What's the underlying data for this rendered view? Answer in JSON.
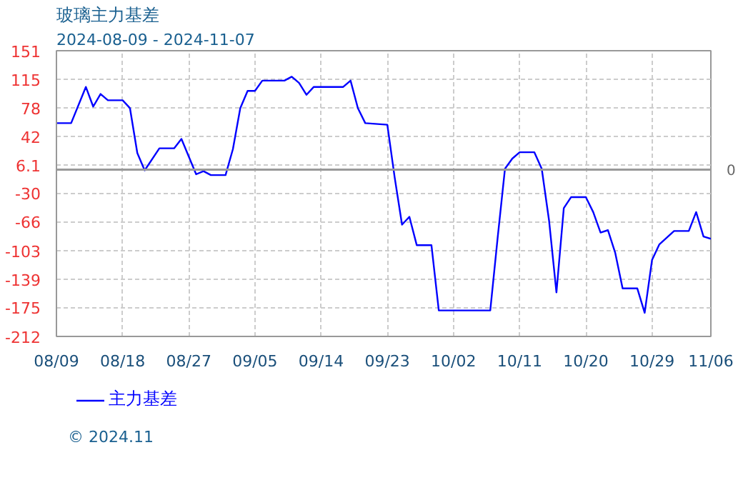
{
  "chart_data": {
    "type": "line",
    "title": "玻璃主力基差",
    "subtitle": "2024-08-09 - 2024-11-07",
    "annotations": [
      "© 2024.11"
    ],
    "x": [
      "2024-08-09",
      "2024-08-11",
      "2024-08-13",
      "2024-08-14",
      "2024-08-15",
      "2024-08-16",
      "2024-08-18",
      "2024-08-19",
      "2024-08-20",
      "2024-08-21",
      "2024-08-23",
      "2024-08-25",
      "2024-08-26",
      "2024-08-28",
      "2024-08-29",
      "2024-08-30",
      "2024-09-01",
      "2024-09-02",
      "2024-09-03",
      "2024-09-04",
      "2024-09-05",
      "2024-09-06",
      "2024-09-09",
      "2024-09-10",
      "2024-09-11",
      "2024-09-12",
      "2024-09-13",
      "2024-09-17",
      "2024-09-18",
      "2024-09-19",
      "2024-09-20",
      "2024-09-23",
      "2024-09-24",
      "2024-09-25",
      "2024-09-26",
      "2024-09-27",
      "2024-09-29",
      "2024-09-30",
      "2024-10-07",
      "2024-10-08",
      "2024-10-09",
      "2024-10-10",
      "2024-10-11",
      "2024-10-13",
      "2024-10-14",
      "2024-10-15",
      "2024-10-16",
      "2024-10-17",
      "2024-10-18",
      "2024-10-20",
      "2024-10-21",
      "2024-10-22",
      "2024-10-23",
      "2024-10-24",
      "2024-10-25",
      "2024-10-27",
      "2024-10-28",
      "2024-10-29",
      "2024-10-30",
      "2024-11-01",
      "2024-11-03",
      "2024-11-04",
      "2024-11-05",
      "2024-11-06"
    ],
    "series": [
      {
        "name": "主力基差",
        "color": "#0000ff",
        "values": [
          59,
          59,
          105,
          80,
          96,
          88,
          88,
          78,
          21,
          -1,
          27,
          27,
          39,
          -6,
          -2,
          -7,
          -7,
          26,
          78,
          100,
          100,
          113,
          113,
          118,
          110,
          95,
          105,
          105,
          113,
          78,
          59,
          57,
          -10,
          -70,
          -60,
          -96,
          -96,
          -179,
          -179,
          -87,
          1,
          14,
          22,
          22,
          1,
          -65,
          -156,
          -49,
          -35,
          -35,
          -54,
          -80,
          -77,
          -106,
          -151,
          -151,
          -182,
          -115,
          -95,
          -78,
          -78,
          -54,
          -85,
          -88
        ]
      }
    ],
    "xlim": [
      "2024-08-09",
      "2024-11-06"
    ],
    "xticks": [
      {
        "value": "2024-08-09",
        "label": "08/09"
      },
      {
        "value": "2024-08-18",
        "label": "08/18"
      },
      {
        "value": "2024-08-27",
        "label": "08/27"
      },
      {
        "value": "2024-09-05",
        "label": "09/05"
      },
      {
        "value": "2024-09-14",
        "label": "09/14"
      },
      {
        "value": "2024-09-23",
        "label": "09/23"
      },
      {
        "value": "2024-10-02",
        "label": "10/02"
      },
      {
        "value": "2024-10-11",
        "label": "10/11"
      },
      {
        "value": "2024-10-20",
        "label": "10/20"
      },
      {
        "value": "2024-10-29",
        "label": "10/29"
      },
      {
        "value": "2024-11-06",
        "label": "11/06"
      }
    ],
    "ylim": [
      -212,
      151
    ],
    "yticks": [
      -212,
      -175,
      -139,
      -103,
      -66,
      -30,
      6.1,
      42,
      78,
      115,
      151
    ],
    "ref_lines": [
      {
        "axis": "y",
        "value": 0,
        "label": "0",
        "color": "#999999"
      }
    ],
    "grid": true,
    "legend": "bottom",
    "marker": "none",
    "line_style": "solid"
  }
}
